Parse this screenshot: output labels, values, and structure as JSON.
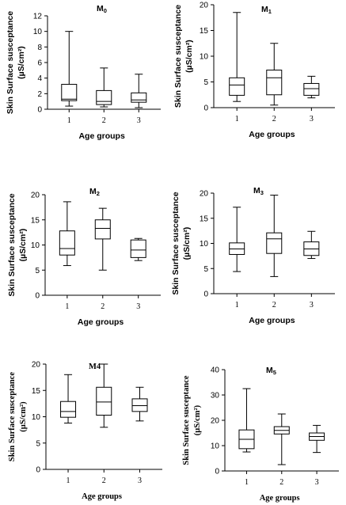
{
  "chart_data": [
    {
      "type": "box",
      "title": "M",
      "title_sub": "0",
      "ylabel_line1": "Skin Surface susceptance",
      "ylabel_line2": "(µS/cm²)",
      "xlabel": "Age groups",
      "ylim": [
        0,
        12
      ],
      "yticks": [
        0,
        2,
        4,
        6,
        8,
        10,
        12
      ],
      "categories": [
        "1",
        "2",
        "3"
      ],
      "boxes": [
        {
          "min": 0.4,
          "q1": 1.1,
          "median": 1.3,
          "q3": 3.2,
          "max": 10.0
        },
        {
          "min": 0.3,
          "q1": 0.6,
          "median": 1.0,
          "q3": 2.4,
          "max": 5.3
        },
        {
          "min": 0.2,
          "q1": 0.9,
          "median": 1.2,
          "q3": 2.1,
          "max": 4.5
        }
      ]
    },
    {
      "type": "box",
      "title": "M",
      "title_sub": "1",
      "ylabel_line1": "Skin Surface susceptance",
      "ylabel_line2": "(µS/cm²)",
      "xlabel": "Age groups",
      "ylim": [
        0,
        20
      ],
      "yticks": [
        0,
        5,
        10,
        15,
        20
      ],
      "categories": [
        "1",
        "2",
        "3"
      ],
      "boxes": [
        {
          "min": 1.2,
          "q1": 2.4,
          "median": 4.4,
          "q3": 5.8,
          "max": 18.5
        },
        {
          "min": 0.5,
          "q1": 2.5,
          "median": 5.8,
          "q3": 7.3,
          "max": 12.5
        },
        {
          "min": 1.9,
          "q1": 2.4,
          "median": 3.7,
          "q3": 4.7,
          "max": 6.1
        }
      ]
    },
    {
      "type": "box",
      "title": "M",
      "title_sub": "2",
      "ylabel_line1": "Skin Surface susceptance",
      "ylabel_line2": "(µS/cm²)",
      "xlabel": "Age groups",
      "ylim": [
        0,
        20
      ],
      "yticks": [
        0,
        5,
        10,
        15,
        20
      ],
      "categories": [
        "1",
        "2",
        "3"
      ],
      "boxes": [
        {
          "min": 5.9,
          "q1": 8.0,
          "median": 9.3,
          "q3": 12.8,
          "max": 18.6
        },
        {
          "min": 5.0,
          "q1": 11.2,
          "median": 13.3,
          "q3": 15.0,
          "max": 17.3
        },
        {
          "min": 6.9,
          "q1": 7.5,
          "median": 9.0,
          "q3": 11.0,
          "max": 11.3
        }
      ]
    },
    {
      "type": "box",
      "title": "M",
      "title_sub": "3",
      "ylabel_line1": "Skin Surface susceptance",
      "ylabel_line2": "(µS/cm²)",
      "xlabel": "Age groups",
      "ylim": [
        0,
        20
      ],
      "yticks": [
        0,
        5,
        10,
        15,
        20
      ],
      "categories": [
        "1",
        "2",
        "3"
      ],
      "boxes": [
        {
          "min": 4.4,
          "q1": 7.8,
          "median": 8.9,
          "q3": 10.1,
          "max": 17.2
        },
        {
          "min": 3.4,
          "q1": 8.0,
          "median": 10.9,
          "q3": 12.1,
          "max": 19.6
        },
        {
          "min": 7.0,
          "q1": 7.6,
          "median": 8.9,
          "q3": 10.3,
          "max": 12.4
        }
      ]
    },
    {
      "type": "box",
      "title": "M4",
      "title_sub": "",
      "ylabel_line1": "Skin Surface susceptance",
      "ylabel_line2": "(µS/cm²)",
      "xlabel": "Age groups",
      "ylim": [
        0,
        20
      ],
      "yticks": [
        0,
        5,
        10,
        15,
        20
      ],
      "categories": [
        "1",
        "2",
        "3"
      ],
      "boxes": [
        {
          "min": 8.8,
          "q1": 9.9,
          "median": 11.0,
          "q3": 12.9,
          "max": 18.0
        },
        {
          "min": 8.0,
          "q1": 10.3,
          "median": 12.8,
          "q3": 15.6,
          "max": 20.0
        },
        {
          "min": 9.2,
          "q1": 11.0,
          "median": 12.1,
          "q3": 13.4,
          "max": 15.6
        }
      ]
    },
    {
      "type": "box",
      "title": "M",
      "title_sub": "5",
      "ylabel_line1": "Skin Surface susceptance",
      "ylabel_line2": "(µS/cm²)",
      "xlabel": "Age groups",
      "ylim": [
        0,
        40
      ],
      "yticks": [
        0,
        10,
        20,
        30,
        40
      ],
      "categories": [
        "1",
        "2",
        "3"
      ],
      "boxes": [
        {
          "min": 7.5,
          "q1": 8.8,
          "median": 12.5,
          "q3": 16.2,
          "max": 32.5
        },
        {
          "min": 2.5,
          "q1": 14.6,
          "median": 16.0,
          "q3": 17.5,
          "max": 22.5
        },
        {
          "min": 7.3,
          "q1": 12.1,
          "median": 13.6,
          "q3": 15.0,
          "max": 18.0
        }
      ]
    }
  ]
}
